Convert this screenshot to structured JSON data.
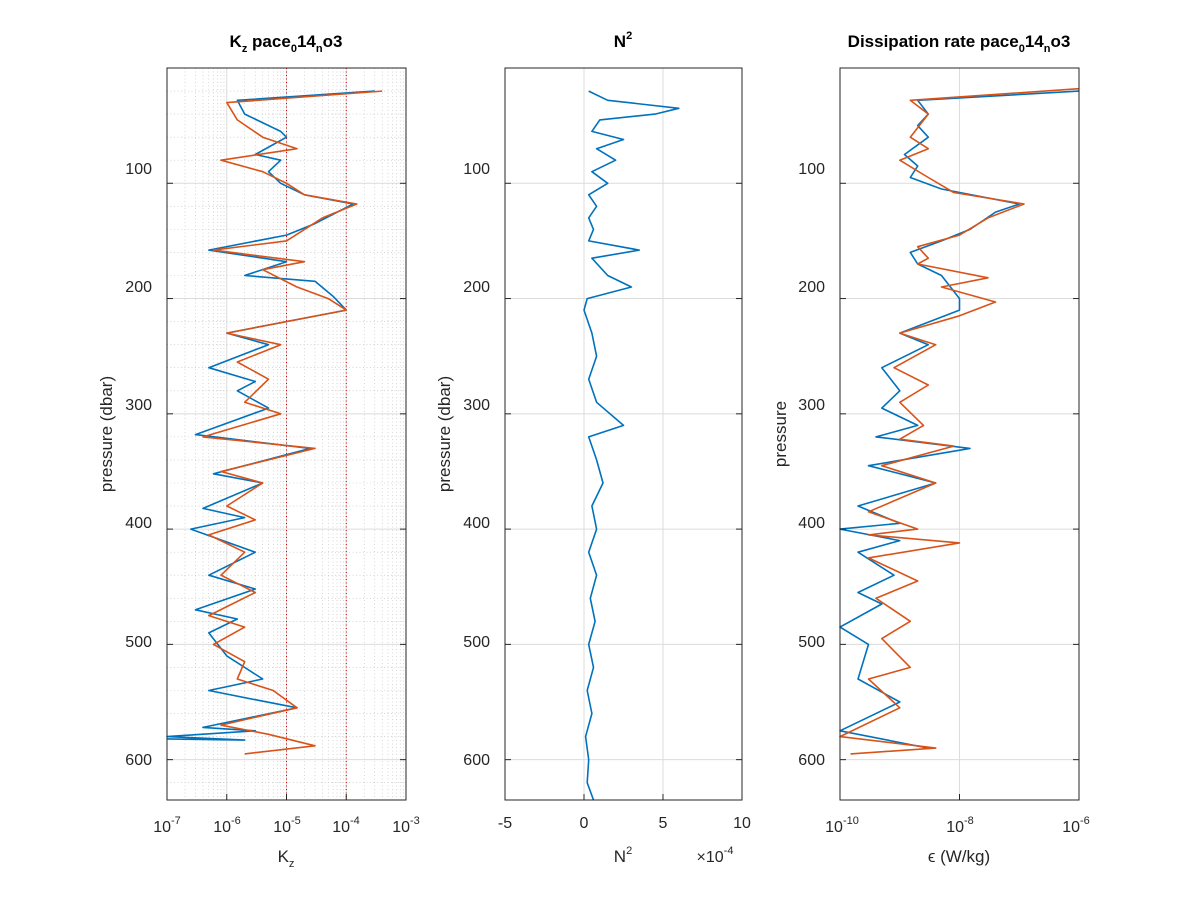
{
  "chart_data": [
    {
      "type": "line",
      "title": "K_z pace_0 14_n o3",
      "title_parts": {
        "base1": "K",
        "sub1": "z",
        "mid": " pace",
        "sub2": "0",
        "mid2": "14",
        "sub3": "n",
        "end": "o3"
      },
      "xlabel": "K_z",
      "xlabel_parts": {
        "base": "K",
        "sub": "z"
      },
      "ylabel": "pressure (dbar)",
      "xscale": "log",
      "xlim": [
        1e-07,
        0.001
      ],
      "ylim": [
        0,
        635
      ],
      "y_reversed": true,
      "x_ticks": [
        {
          "base": "10",
          "exp": "-7"
        },
        {
          "base": "10",
          "exp": "-6"
        },
        {
          "base": "10",
          "exp": "-5"
        },
        {
          "base": "10",
          "exp": "-4"
        },
        {
          "base": "10",
          "exp": "-3"
        }
      ],
      "y_ticks": [
        "100",
        "200",
        "300",
        "400",
        "500",
        "600"
      ],
      "grid": "major-and-minor",
      "reference_lines_x": [
        1e-05,
        0.0001
      ],
      "reference_color": "#cc0000",
      "series": [
        {
          "color": "#0072BD",
          "points": [
            [
              0.0003,
              20
            ],
            [
              1.5e-06,
              28
            ],
            [
              2e-06,
              40
            ],
            [
              8e-06,
              55
            ],
            [
              1e-05,
              60
            ],
            [
              3e-06,
              75
            ],
            [
              8e-06,
              80
            ],
            [
              5e-06,
              90
            ],
            [
              8e-06,
              100
            ],
            [
              2e-05,
              110
            ],
            [
              0.00013,
              118
            ],
            [
              3e-05,
              135
            ],
            [
              1e-05,
              145
            ],
            [
              5e-07,
              158
            ],
            [
              1e-05,
              168
            ],
            [
              2e-06,
              180
            ],
            [
              3e-05,
              185
            ],
            [
              6e-05,
              198
            ],
            [
              0.0001,
              210
            ],
            [
              1e-06,
              230
            ],
            [
              5e-06,
              240
            ],
            [
              5e-07,
              260
            ],
            [
              3e-06,
              272
            ],
            [
              1.5e-06,
              280
            ],
            [
              5e-06,
              295
            ],
            [
              3e-07,
              318
            ],
            [
              2.5e-05,
              330
            ],
            [
              6e-07,
              352
            ],
            [
              4e-06,
              360
            ],
            [
              4e-07,
              382
            ],
            [
              2e-06,
              390
            ],
            [
              2.5e-07,
              400
            ],
            [
              3e-06,
              420
            ],
            [
              5e-07,
              440
            ],
            [
              3e-06,
              452
            ],
            [
              3e-07,
              470
            ],
            [
              1.5e-06,
              478
            ],
            [
              5e-07,
              490
            ],
            [
              1e-06,
              510
            ],
            [
              4e-06,
              530
            ],
            [
              5e-07,
              540
            ],
            [
              3e-06,
              548
            ],
            [
              1.5e-05,
              555
            ],
            [
              4e-07,
              572
            ],
            [
              3e-06,
              575
            ],
            [
              1e-07,
              580
            ],
            [
              2e-06,
              583
            ],
            [
              1e-07,
              582
            ]
          ]
        },
        {
          "color": "#D95319",
          "points": [
            [
              0.0004,
              20
            ],
            [
              1e-06,
              30
            ],
            [
              1.5e-06,
              45
            ],
            [
              4e-06,
              60
            ],
            [
              1.5e-05,
              70
            ],
            [
              8e-07,
              80
            ],
            [
              4e-06,
              90
            ],
            [
              1e-05,
              100
            ],
            [
              2e-05,
              110
            ],
            [
              0.00015,
              118
            ],
            [
              4e-05,
              130
            ],
            [
              1e-05,
              150
            ],
            [
              6e-07,
              158
            ],
            [
              2e-05,
              168
            ],
            [
              4e-06,
              175
            ],
            [
              1.5e-05,
              190
            ],
            [
              5e-05,
              200
            ],
            [
              0.0001,
              210
            ],
            [
              1e-06,
              230
            ],
            [
              8e-06,
              240
            ],
            [
              1.5e-06,
              255
            ],
            [
              5e-06,
              270
            ],
            [
              2e-06,
              290
            ],
            [
              8e-06,
              300
            ],
            [
              4e-07,
              320
            ],
            [
              3e-05,
              330
            ],
            [
              8e-07,
              350
            ],
            [
              4e-06,
              360
            ],
            [
              1e-06,
              380
            ],
            [
              3e-06,
              392
            ],
            [
              5e-07,
              405
            ],
            [
              2e-06,
              420
            ],
            [
              8e-07,
              440
            ],
            [
              3e-06,
              455
            ],
            [
              5e-07,
              475
            ],
            [
              2e-06,
              485
            ],
            [
              6e-07,
              500
            ],
            [
              2e-06,
              515
            ],
            [
              1.5e-06,
              530
            ],
            [
              6e-06,
              540
            ],
            [
              1.5e-05,
              555
            ],
            [
              8e-07,
              570
            ],
            [
              5e-06,
              578
            ],
            [
              3e-05,
              588
            ],
            [
              2e-06,
              595
            ]
          ]
        }
      ]
    },
    {
      "type": "line",
      "title": "N^2",
      "title_parts": {
        "base": "N",
        "exp": "2"
      },
      "xlabel": "N^2",
      "xlabel_parts": {
        "base": "N",
        "exp": "2"
      },
      "x_multiplier": "×10^-4",
      "x_multiplier_parts": {
        "base": "×10",
        "exp": "-4"
      },
      "ylabel": "pressure (dbar)",
      "xlim": [
        -5,
        10
      ],
      "ylim": [
        0,
        635
      ],
      "y_reversed": true,
      "x_ticks": [
        "-5",
        "0",
        "5",
        "10"
      ],
      "y_ticks": [
        "100",
        "200",
        "300",
        "400",
        "500",
        "600"
      ],
      "grid": "major",
      "series": [
        {
          "color": "#0072BD",
          "points": [
            [
              0.3,
              20
            ],
            [
              1.5,
              28
            ],
            [
              6,
              35
            ],
            [
              4.5,
              40
            ],
            [
              1,
              45
            ],
            [
              0.5,
              55
            ],
            [
              2.5,
              62
            ],
            [
              0.8,
              70
            ],
            [
              2,
              80
            ],
            [
              0.5,
              90
            ],
            [
              1.5,
              100
            ],
            [
              0.3,
              110
            ],
            [
              0.8,
              120
            ],
            [
              0.3,
              130
            ],
            [
              0.6,
              140
            ],
            [
              0.3,
              150
            ],
            [
              3.5,
              158
            ],
            [
              0.5,
              165
            ],
            [
              1.5,
              180
            ],
            [
              3,
              190
            ],
            [
              0.2,
              200
            ],
            [
              0,
              210
            ],
            [
              0.5,
              230
            ],
            [
              0.8,
              250
            ],
            [
              0.3,
              270
            ],
            [
              0.8,
              290
            ],
            [
              2.5,
              310
            ],
            [
              0.3,
              320
            ],
            [
              0.8,
              340
            ],
            [
              1.2,
              360
            ],
            [
              0.5,
              380
            ],
            [
              0.8,
              400
            ],
            [
              0.3,
              420
            ],
            [
              0.8,
              440
            ],
            [
              0.4,
              460
            ],
            [
              0.7,
              480
            ],
            [
              0.3,
              500
            ],
            [
              0.6,
              520
            ],
            [
              0.2,
              540
            ],
            [
              0.5,
              560
            ],
            [
              0.1,
              580
            ],
            [
              0.3,
              600
            ],
            [
              0.2,
              620
            ],
            [
              0.6,
              635
            ]
          ]
        }
      ]
    },
    {
      "type": "line",
      "title": "Dissipation rate pace_0 14_n o3",
      "title_parts": {
        "lead": "Dissipation rate pace",
        "sub1": "0",
        "mid": "14",
        "sub2": "n",
        "end": "o3"
      },
      "xlabel": "ϵ (W/kg)",
      "ylabel": "pressure",
      "xscale": "log",
      "xlim": [
        1e-10,
        1e-06
      ],
      "ylim": [
        0,
        635
      ],
      "y_reversed": true,
      "x_ticks": [
        {
          "base": "10",
          "exp": "-10"
        },
        {
          "base": "10",
          "exp": "-8"
        },
        {
          "base": "10",
          "exp": "-6"
        }
      ],
      "y_ticks": [
        "100",
        "200",
        "300",
        "400",
        "500",
        "600"
      ],
      "grid": "major",
      "series": [
        {
          "color": "#0072BD",
          "points": [
            [
              1e-06,
              20
            ],
            [
              2e-09,
              28
            ],
            [
              3e-09,
              40
            ],
            [
              2e-09,
              50
            ],
            [
              3e-09,
              60
            ],
            [
              1.2e-09,
              75
            ],
            [
              2e-09,
              85
            ],
            [
              1.5e-09,
              95
            ],
            [
              5e-09,
              105
            ],
            [
              1e-07,
              118
            ],
            [
              4e-08,
              125
            ],
            [
              1.5e-08,
              140
            ],
            [
              5e-09,
              150
            ],
            [
              1.5e-09,
              160
            ],
            [
              2e-09,
              170
            ],
            [
              5e-09,
              180
            ],
            [
              1e-08,
              200
            ],
            [
              1e-08,
              210
            ],
            [
              1e-09,
              230
            ],
            [
              3e-09,
              240
            ],
            [
              5e-10,
              260
            ],
            [
              1e-09,
              280
            ],
            [
              5e-10,
              295
            ],
            [
              2e-09,
              310
            ],
            [
              4e-10,
              320
            ],
            [
              1.5e-08,
              330
            ],
            [
              3e-10,
              345
            ],
            [
              4e-09,
              360
            ],
            [
              2e-10,
              380
            ],
            [
              1e-09,
              395
            ],
            [
              1e-10,
              400
            ],
            [
              1e-09,
              410
            ],
            [
              2e-10,
              420
            ],
            [
              8e-10,
              440
            ],
            [
              2e-10,
              455
            ],
            [
              5e-10,
              465
            ],
            [
              1e-10,
              485
            ],
            [
              3e-10,
              500
            ],
            [
              2e-10,
              530
            ],
            [
              1e-09,
              550
            ],
            [
              1e-10,
              575
            ],
            [
              3e-09,
              590
            ]
          ]
        },
        {
          "color": "#D95319",
          "points": [
            [
              1e-06,
              18
            ],
            [
              1.5e-09,
              28
            ],
            [
              3e-09,
              40
            ],
            [
              1.5e-09,
              60
            ],
            [
              3e-09,
              70
            ],
            [
              1e-09,
              80
            ],
            [
              3e-09,
              95
            ],
            [
              8e-09,
              108
            ],
            [
              1.2e-07,
              118
            ],
            [
              3e-08,
              130
            ],
            [
              1e-08,
              145
            ],
            [
              2e-09,
              155
            ],
            [
              3e-09,
              165
            ],
            [
              2e-09,
              170
            ],
            [
              3e-08,
              182
            ],
            [
              5e-09,
              190
            ],
            [
              4e-08,
              203
            ],
            [
              1e-08,
              215
            ],
            [
              1e-09,
              230
            ],
            [
              4e-09,
              240
            ],
            [
              8e-10,
              260
            ],
            [
              3e-09,
              275
            ],
            [
              1e-09,
              290
            ],
            [
              2.5e-09,
              310
            ],
            [
              1e-09,
              322
            ],
            [
              8e-09,
              328
            ],
            [
              5e-10,
              345
            ],
            [
              4e-09,
              360
            ],
            [
              3e-10,
              385
            ],
            [
              2e-09,
              400
            ],
            [
              3e-10,
              405
            ],
            [
              1e-08,
              412
            ],
            [
              3e-10,
              425
            ],
            [
              2e-09,
              445
            ],
            [
              4e-10,
              460
            ],
            [
              1.5e-09,
              480
            ],
            [
              5e-10,
              495
            ],
            [
              1.5e-09,
              520
            ],
            [
              3e-10,
              530
            ],
            [
              1e-09,
              555
            ],
            [
              1e-10,
              580
            ],
            [
              4e-09,
              590
            ],
            [
              1.5e-10,
              595
            ]
          ]
        }
      ]
    }
  ]
}
